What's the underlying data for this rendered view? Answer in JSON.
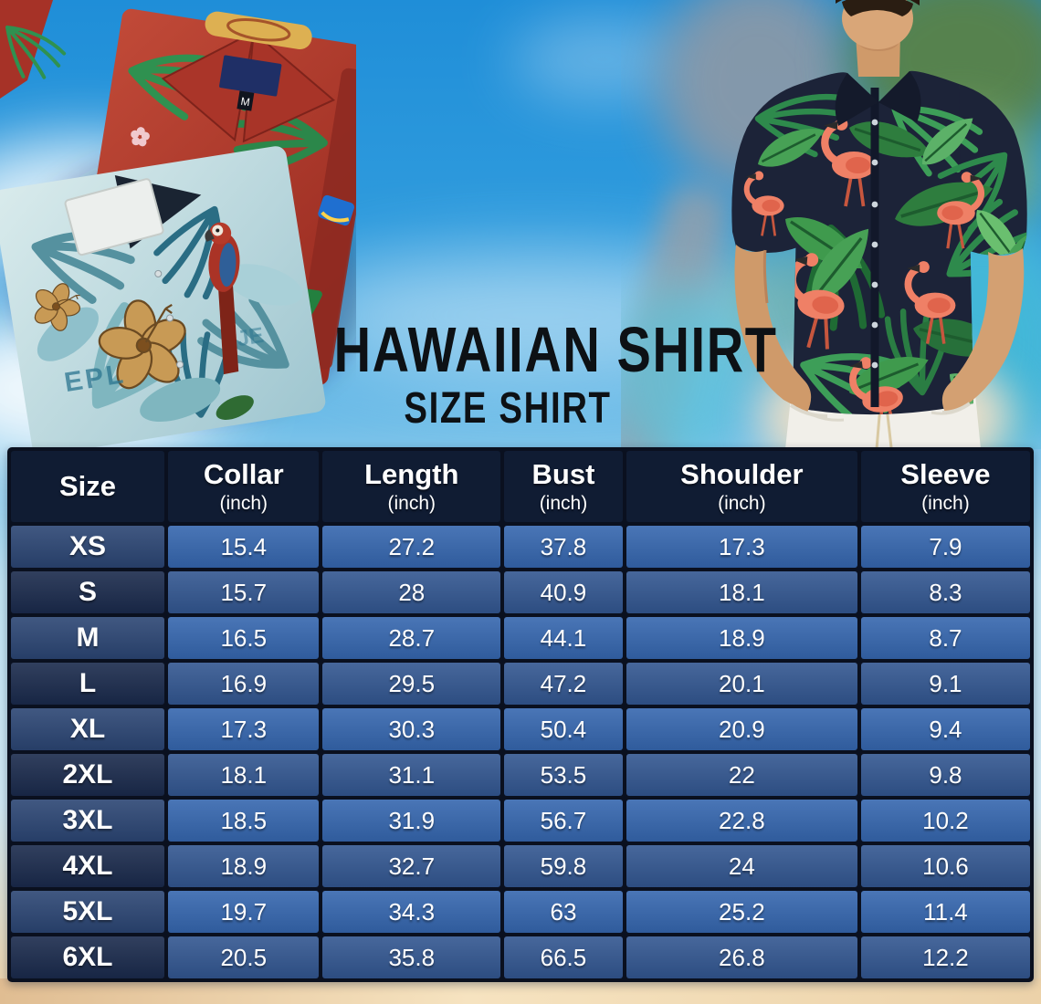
{
  "title": "HAWAIIAN SHIRT",
  "subtitle": "SIZE SHIRT",
  "decor": {
    "red_shirt_tag": "M",
    "teal_shirt_text": "EPL",
    "teal_shirt_text2": "JE"
  },
  "colors": {
    "sky": "#1f8ed8",
    "sky_light": "#bfe2f2",
    "sand": "#ecd2a9",
    "grid": "#0a101f",
    "header_bg": "#101c33",
    "row_light": "#3566ae",
    "row_light_size": "#2b4573",
    "row_dark": "#325690",
    "row_dark_size": "#1a2a4c",
    "title": "#0d1115",
    "shirt_navy": "#1c2338",
    "leaf_green": "#3f9a4d",
    "flamingo": "#ef8066",
    "red_shirt": "#b23a30",
    "teal_shirt": "#c2e0e8",
    "skin": "#d3a072",
    "pants": "#f1efe9"
  },
  "table": {
    "columns": [
      {
        "label": "Size",
        "sub": ""
      },
      {
        "label": "Collar",
        "sub": "(inch)"
      },
      {
        "label": "Length",
        "sub": "(inch)"
      },
      {
        "label": "Bust",
        "sub": "(inch)"
      },
      {
        "label": "Shoulder",
        "sub": "(inch)"
      },
      {
        "label": "Sleeve",
        "sub": "(inch)"
      }
    ],
    "rows": [
      {
        "size": "XS",
        "values": [
          "15.4",
          "27.2",
          "37.8",
          "17.3",
          "7.9"
        ]
      },
      {
        "size": "S",
        "values": [
          "15.7",
          "28",
          "40.9",
          "18.1",
          "8.3"
        ]
      },
      {
        "size": "M",
        "values": [
          "16.5",
          "28.7",
          "44.1",
          "18.9",
          "8.7"
        ]
      },
      {
        "size": "L",
        "values": [
          "16.9",
          "29.5",
          "47.2",
          "20.1",
          "9.1"
        ]
      },
      {
        "size": "XL",
        "values": [
          "17.3",
          "30.3",
          "50.4",
          "20.9",
          "9.4"
        ]
      },
      {
        "size": "2XL",
        "values": [
          "18.1",
          "31.1",
          "53.5",
          "22",
          "9.8"
        ]
      },
      {
        "size": "3XL",
        "values": [
          "18.5",
          "31.9",
          "56.7",
          "22.8",
          "10.2"
        ]
      },
      {
        "size": "4XL",
        "values": [
          "18.9",
          "32.7",
          "59.8",
          "24",
          "10.6"
        ]
      },
      {
        "size": "5XL",
        "values": [
          "19.7",
          "34.3",
          "63",
          "25.2",
          "11.4"
        ]
      },
      {
        "size": "6XL",
        "values": [
          "20.5",
          "35.8",
          "66.5",
          "26.8",
          "12.2"
        ]
      }
    ]
  },
  "chart_data": {
    "type": "table",
    "title": "HAWAIIAN SHIRT SIZE SHIRT",
    "columns": [
      "Size",
      "Collar (inch)",
      "Length (inch)",
      "Bust (inch)",
      "Shoulder (inch)",
      "Sleeve (inch)"
    ],
    "rows": [
      [
        "XS",
        15.4,
        27.2,
        37.8,
        17.3,
        7.9
      ],
      [
        "S",
        15.7,
        28,
        40.9,
        18.1,
        8.3
      ],
      [
        "M",
        16.5,
        28.7,
        44.1,
        18.9,
        8.7
      ],
      [
        "L",
        16.9,
        29.5,
        47.2,
        20.1,
        9.1
      ],
      [
        "XL",
        17.3,
        30.3,
        50.4,
        20.9,
        9.4
      ],
      [
        "2XL",
        18.1,
        31.1,
        53.5,
        22,
        9.8
      ],
      [
        "3XL",
        18.5,
        31.9,
        56.7,
        22.8,
        10.2
      ],
      [
        "4XL",
        18.9,
        32.7,
        59.8,
        24,
        10.6
      ],
      [
        "5XL",
        19.7,
        34.3,
        63,
        25.2,
        11.4
      ],
      [
        "6XL",
        20.5,
        35.8,
        66.5,
        26.8,
        12.2
      ]
    ]
  }
}
